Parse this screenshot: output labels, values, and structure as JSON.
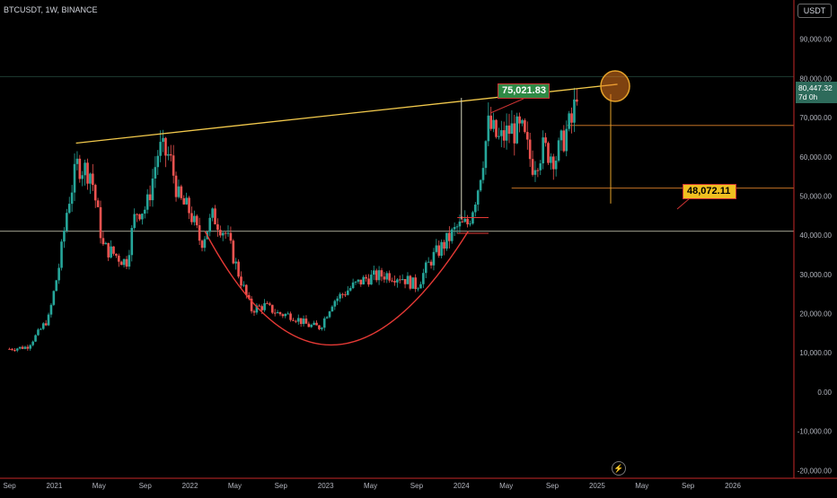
{
  "header": {
    "symbol": "BTCUSDT, 1W, BINANCE",
    "currency": "USDT"
  },
  "price_tag": {
    "price": "80,447.32",
    "countdown": "7d 0h"
  },
  "annotations": {
    "top_label": "75,021.83",
    "target_label": "48,072.11"
  },
  "colors": {
    "up": "#26a69a",
    "down": "#ef5350",
    "trendline": "#f2c94c",
    "cup": "#e53935",
    "background": "#000000"
  },
  "chart_data": {
    "type": "candlestick",
    "title": "",
    "xlabel": "",
    "ylabel": "",
    "y_ticks": [
      90000,
      80000,
      70000,
      60000,
      50000,
      40000,
      30000,
      20000,
      10000,
      0,
      -10000,
      -20000
    ],
    "y_tick_labels": [
      "90,000.00",
      "80,000.00",
      "70,000.00",
      "60,000.00",
      "50,000.00",
      "40,000.00",
      "30,000.00",
      "20,000.00",
      "10,000.00",
      "0.00",
      "-10,000.00",
      "-20,000.00"
    ],
    "x_ticks": [
      "Sep",
      "2021",
      "May",
      "Sep",
      "2022",
      "May",
      "Sep",
      "2023",
      "May",
      "Sep",
      "2024",
      "May",
      "Sep",
      "2025",
      "May",
      "Sep",
      "2026"
    ],
    "ylim": [
      -22000,
      100000
    ],
    "price_path": [
      [
        2020.67,
        11000
      ],
      [
        2020.8,
        11500
      ],
      [
        2020.88,
        15000
      ],
      [
        2020.96,
        19000
      ],
      [
        2021.04,
        33000
      ],
      [
        2021.1,
        48000
      ],
      [
        2021.17,
        58000
      ],
      [
        2021.27,
        56000
      ],
      [
        2021.36,
        37000
      ],
      [
        2021.45,
        35000
      ],
      [
        2021.53,
        33000
      ],
      [
        2021.6,
        46000
      ],
      [
        2021.68,
        47000
      ],
      [
        2021.77,
        62000
      ],
      [
        2021.85,
        60000
      ],
      [
        2021.92,
        49000
      ],
      [
        2022.0,
        46000
      ],
      [
        2022.08,
        38000
      ],
      [
        2022.17,
        45000
      ],
      [
        2022.27,
        40000
      ],
      [
        2022.36,
        30000
      ],
      [
        2022.45,
        21000
      ],
      [
        2022.55,
        22000
      ],
      [
        2022.65,
        20000
      ],
      [
        2022.75,
        19500
      ],
      [
        2022.87,
        17000
      ],
      [
        2022.96,
        16500
      ],
      [
        2023.05,
        23000
      ],
      [
        2023.2,
        27000
      ],
      [
        2023.3,
        29000
      ],
      [
        2023.45,
        30000
      ],
      [
        2023.55,
        29500
      ],
      [
        2023.67,
        27000
      ],
      [
        2023.78,
        34000
      ],
      [
        2023.88,
        38000
      ],
      [
        2023.97,
        42000
      ],
      [
        2024.05,
        43000
      ],
      [
        2024.12,
        52000
      ],
      [
        2024.2,
        68000
      ],
      [
        2024.28,
        64000
      ],
      [
        2024.36,
        67000
      ],
      [
        2024.45,
        66000
      ],
      [
        2024.52,
        58000
      ],
      [
        2024.6,
        62000
      ],
      [
        2024.7,
        60000
      ],
      [
        2024.78,
        67000
      ],
      [
        2024.82,
        69000
      ],
      [
        2024.86,
        80447
      ]
    ],
    "trendline": {
      "from": [
        2021.16,
        63500
      ],
      "to": [
        2025.15,
        78500
      ]
    },
    "cup_arc": {
      "from": [
        2022.11,
        41000
      ],
      "bottom": [
        2023.0,
        12000
      ],
      "to": [
        2024.05,
        41000
      ]
    },
    "horizontal_levels": [
      {
        "value": 41000,
        "from": 2020.58,
        "to": 2026.6
      },
      {
        "value": 68000,
        "from": 2024.78,
        "to": 2026.48
      },
      {
        "value": 52000,
        "from": 2024.37,
        "to": 2026.48
      },
      {
        "value": 80447,
        "from": 2020.58,
        "to": 2026.45
      }
    ],
    "measure_lines": [
      {
        "x": 2024.0,
        "from": 44000,
        "to": 75021.83
      },
      {
        "x": 2025.1,
        "from": 76000,
        "to": 48072.11
      }
    ],
    "latest_price": 80447.32
  }
}
